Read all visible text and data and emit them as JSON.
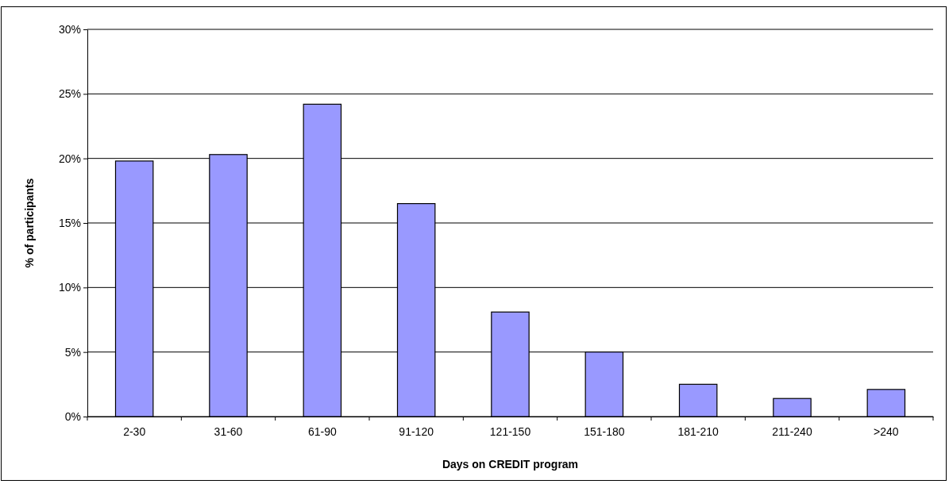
{
  "chart_data": {
    "type": "bar",
    "xlabel": "Days on CREDIT program",
    "ylabel": "% of participants",
    "categories": [
      "2-30",
      "31-60",
      "61-90",
      "91-120",
      "121-150",
      "151-180",
      "181-210",
      "211-240",
      ">240"
    ],
    "values": [
      19.8,
      20.3,
      24.2,
      16.5,
      8.1,
      5.0,
      2.5,
      1.4,
      2.1
    ],
    "color": "#9999ff",
    "ylim": [
      0,
      30
    ],
    "yticks": [
      {
        "value": 0,
        "label": "0%"
      },
      {
        "value": 5,
        "label": "5%"
      },
      {
        "value": 10,
        "label": "10%"
      },
      {
        "value": 15,
        "label": "15%"
      },
      {
        "value": 20,
        "label": "20%"
      },
      {
        "value": 25,
        "label": "25%"
      },
      {
        "value": 30,
        "label": "30%"
      }
    ],
    "grid": "y"
  }
}
